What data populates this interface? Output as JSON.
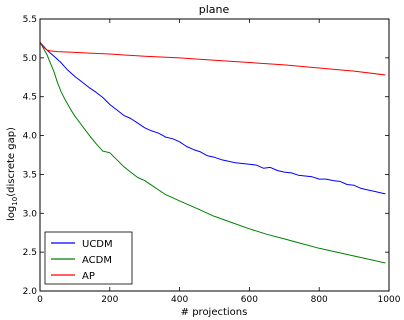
{
  "chart_data": {
    "type": "line",
    "title": "plane",
    "xlabel": "# projections",
    "ylabel_main": "log",
    "ylabel_sub": "10",
    "ylabel_rest": "(discrete gap)",
    "xlim": [
      0,
      1000
    ],
    "ylim": [
      2.0,
      5.5
    ],
    "xticks": [
      "0",
      "200",
      "400",
      "600",
      "800",
      "1000"
    ],
    "xtick_values": [
      0,
      200,
      400,
      600,
      800,
      1000
    ],
    "yticks": [
      "2.0",
      "2.5",
      "3.0",
      "3.5",
      "4.0",
      "4.5",
      "5.0",
      "5.5"
    ],
    "ytick_values": [
      2.0,
      2.5,
      3.0,
      3.5,
      4.0,
      4.5,
      5.0,
      5.5
    ],
    "grid": false,
    "legend_position": "bottom-left",
    "series": [
      {
        "name": "UCDM",
        "color": "#0000ff",
        "x": [
          0,
          10,
          20,
          30,
          40,
          50,
          60,
          70,
          80,
          90,
          100,
          120,
          140,
          160,
          180,
          200,
          220,
          240,
          260,
          280,
          300,
          320,
          340,
          360,
          380,
          400,
          420,
          440,
          460,
          480,
          500,
          520,
          540,
          560,
          580,
          600,
          620,
          640,
          660,
          680,
          700,
          720,
          740,
          760,
          780,
          800,
          820,
          840,
          860,
          880,
          900,
          920,
          940,
          960,
          980,
          990
        ],
        "y": [
          5.2,
          5.15,
          5.1,
          5.06,
          5.02,
          4.98,
          4.94,
          4.89,
          4.84,
          4.8,
          4.76,
          4.69,
          4.62,
          4.56,
          4.49,
          4.4,
          4.33,
          4.26,
          4.22,
          4.16,
          4.1,
          4.06,
          4.03,
          3.98,
          3.96,
          3.92,
          3.86,
          3.82,
          3.79,
          3.74,
          3.72,
          3.69,
          3.67,
          3.65,
          3.64,
          3.63,
          3.62,
          3.58,
          3.59,
          3.55,
          3.53,
          3.52,
          3.49,
          3.48,
          3.47,
          3.44,
          3.44,
          3.42,
          3.41,
          3.37,
          3.36,
          3.32,
          3.3,
          3.28,
          3.26,
          3.25
        ]
      },
      {
        "name": "ACDM",
        "color": "#008000",
        "x": [
          0,
          10,
          20,
          30,
          40,
          50,
          60,
          70,
          80,
          90,
          100,
          120,
          140,
          160,
          180,
          200,
          220,
          240,
          260,
          280,
          300,
          320,
          340,
          360,
          380,
          400,
          450,
          500,
          550,
          600,
          650,
          700,
          750,
          800,
          850,
          900,
          950,
          990
        ],
        "y": [
          5.2,
          5.12,
          5.04,
          4.93,
          4.82,
          4.68,
          4.57,
          4.48,
          4.4,
          4.32,
          4.25,
          4.13,
          4.01,
          3.9,
          3.8,
          3.78,
          3.69,
          3.6,
          3.53,
          3.46,
          3.42,
          3.36,
          3.3,
          3.24,
          3.2,
          3.16,
          3.06,
          2.96,
          2.88,
          2.8,
          2.73,
          2.67,
          2.61,
          2.55,
          2.5,
          2.45,
          2.4,
          2.36
        ]
      },
      {
        "name": "AP",
        "color": "#ff0000",
        "x": [
          0,
          10,
          20,
          30,
          50,
          100,
          150,
          200,
          300,
          400,
          500,
          600,
          700,
          800,
          900,
          990
        ],
        "y": [
          5.2,
          5.14,
          5.1,
          5.09,
          5.08,
          5.07,
          5.06,
          5.05,
          5.02,
          5.0,
          4.97,
          4.94,
          4.91,
          4.87,
          4.83,
          4.78
        ]
      }
    ]
  }
}
